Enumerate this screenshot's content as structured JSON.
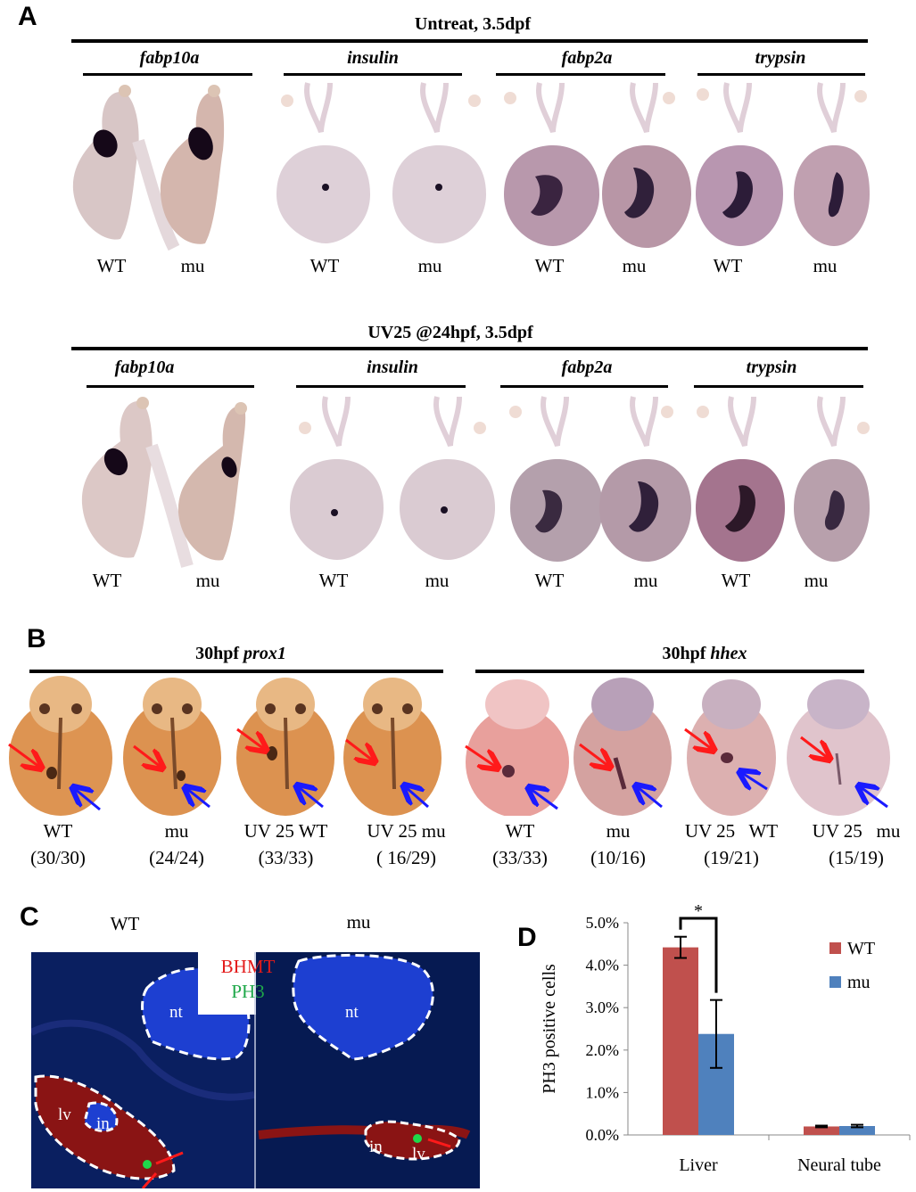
{
  "panels": {
    "A": {
      "letter": "A",
      "rows": [
        {
          "title": "Untreat, 3.5dpf",
          "genes": [
            "fabp10a",
            "insulin",
            "fabp2a",
            "trypsin"
          ],
          "labels": [
            "WT",
            "mu",
            "WT",
            "mu",
            "WT",
            "mu",
            "WT",
            "mu"
          ]
        },
        {
          "title": "UV25 @24hpf,  3.5dpf",
          "genes": [
            "fabp10a",
            "insulin",
            "fabp2a",
            "trypsin"
          ],
          "labels": [
            "WT",
            "mu",
            "WT",
            "mu",
            "WT",
            "mu",
            "WT",
            "mu"
          ]
        }
      ]
    },
    "B": {
      "letter": "B",
      "groups": [
        {
          "title_prefix": "30hpf ",
          "gene": "prox1"
        },
        {
          "title_prefix": "30hpf ",
          "gene": "hhex"
        }
      ],
      "samples": [
        {
          "name": "WT",
          "count": "(30/30)"
        },
        {
          "name": "mu",
          "count": "(24/24)"
        },
        {
          "name": "UV 25 WT",
          "count": "(33/33)"
        },
        {
          "name": "UV 25 mu",
          "count": "( 16/29)"
        },
        {
          "name": "WT",
          "count": "(33/33)"
        },
        {
          "name": "mu",
          "count": "(10/16)"
        },
        {
          "name": "UV 25   WT",
          "count": "(19/21)"
        },
        {
          "name": "UV 25   mu",
          "count": "(15/19)"
        }
      ]
    },
    "C": {
      "letter": "C",
      "left_label": "WT",
      "right_label": "mu",
      "legend_red": "BHMT",
      "legend_green": "PH3",
      "regions": {
        "nt": "nt",
        "lv": "lv",
        "in": "in"
      },
      "colors": {
        "background": "#061a52",
        "liver": "#8a1414",
        "nuclei": "#1d3fd1",
        "legend_red": "#e31a1a",
        "legend_green": "#1fa84a"
      }
    },
    "D": {
      "letter": "D",
      "significance": "*"
    }
  },
  "chart_data": {
    "type": "bar",
    "categories": [
      "Liver",
      "Neural tube"
    ],
    "series": [
      {
        "name": "WT",
        "values": [
          0.0442,
          0.002
        ],
        "errors": [
          0.0025,
          0.0002
        ],
        "color": "#c0504d"
      },
      {
        "name": "mu",
        "values": [
          0.0238,
          0.0021
        ],
        "errors": [
          0.008,
          0.0003
        ],
        "color": "#4f81bd"
      }
    ],
    "ylabel": "PH3 positive cells",
    "yticks": [
      "0.0%",
      "1.0%",
      "2.0%",
      "3.0%",
      "4.0%",
      "5.0%"
    ],
    "ylim": [
      0,
      0.05
    ],
    "legend_position": "top-right",
    "grid": false
  }
}
